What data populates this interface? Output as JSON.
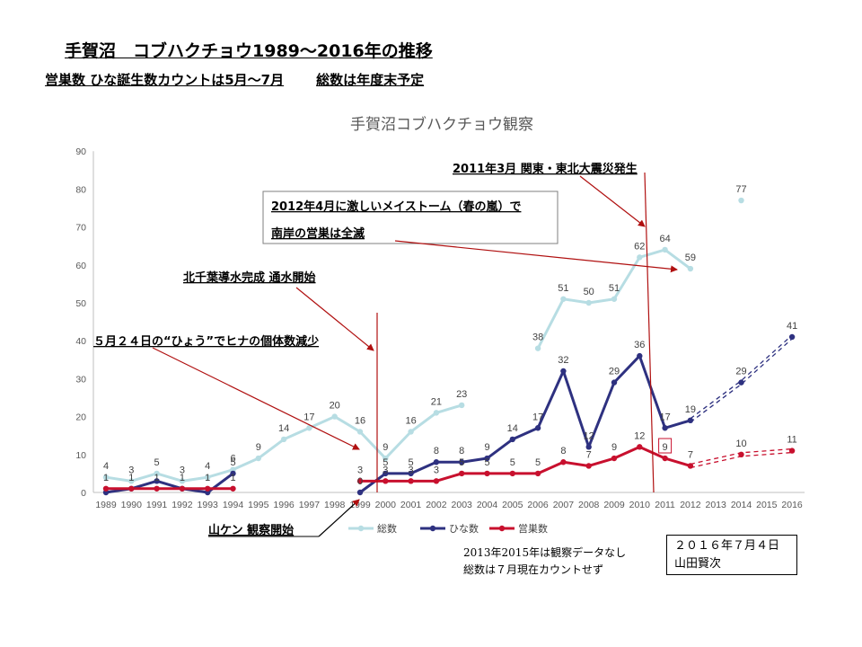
{
  "page": {
    "headline": "手賀沼　コブハクチョウ1989～2016年の推移",
    "subline_left": "営巣数 ひな誕生数カウントは5月～7月",
    "subline_right": "総数は年度末予定"
  },
  "notes": {
    "line1": "2013年2015年は観察データなし",
    "line2": "総数は７月現在カウントせず"
  },
  "signature": {
    "date": "２０１６年７月４日",
    "name": "山田賢次"
  },
  "annotations": {
    "quake": "2011年3月  関東・東北大震災発生",
    "storm_line1": "2012年4月に激しいメイストーム（春の嵐）で",
    "storm_line2": "南岸の営巣は全滅",
    "water": "北千葉導水完成 通水開始",
    "hyou": "５月２４日の“ひょう”でヒナの個体数減少",
    "observe": "山ケン  観察開始"
  },
  "colors": {
    "total": "#b7dde3",
    "chicks": "#2e3180",
    "nests": "#c8102e",
    "axis": "#bfbfbf",
    "arrow": "#b01010"
  },
  "chart_data": {
    "type": "line",
    "title": "手賀沼コブハクチョウ観察",
    "ylim": [
      0,
      90
    ],
    "yticks": [
      0,
      10,
      20,
      30,
      40,
      50,
      60,
      70,
      80,
      90
    ],
    "categories": [
      "1989",
      "1990",
      "1991",
      "1992",
      "1993",
      "1994",
      "1995",
      "1996",
      "1997",
      "1998",
      "1999",
      "2000",
      "2001",
      "2002",
      "2003",
      "2004",
      "2005",
      "2006",
      "2007",
      "2008",
      "2009",
      "2010",
      "2011",
      "2012",
      "2013",
      "2014",
      "2015",
      "2016"
    ],
    "series": [
      {
        "key": "total",
        "name": "総数",
        "segments": [
          [
            0,
            1,
            2,
            3,
            4,
            5,
            6,
            7,
            8,
            9,
            10,
            11,
            12,
            13,
            14
          ],
          [
            17,
            18,
            19,
            20,
            21,
            22,
            23
          ]
        ],
        "values": [
          4,
          3,
          5,
          3,
          4,
          6,
          9,
          14,
          17,
          20,
          16,
          9,
          16,
          21,
          23,
          null,
          null,
          38,
          51,
          50,
          51,
          62,
          64,
          59,
          null,
          77,
          null,
          null
        ],
        "labels": [
          "4",
          "3",
          "5",
          "3",
          "4",
          "6",
          "9",
          "14",
          "17",
          "20",
          "16",
          "9",
          "16",
          "21",
          "23",
          null,
          null,
          "38",
          "51",
          "50",
          "51",
          "62",
          "64",
          "59",
          null,
          "77",
          null,
          null
        ]
      },
      {
        "key": "chicks",
        "name": "ひな数",
        "segments": [
          [
            0,
            1,
            2,
            3,
            4,
            5
          ],
          [
            10,
            11,
            12,
            13,
            14,
            15,
            16,
            17,
            18,
            19,
            20,
            21,
            22,
            23
          ]
        ],
        "dashed": [
          [
            23,
            25,
            27
          ]
        ],
        "values": [
          0,
          1,
          3,
          1,
          0,
          5,
          null,
          null,
          null,
          null,
          0,
          5,
          5,
          8,
          8,
          9,
          14,
          17,
          32,
          12,
          29,
          36,
          17,
          19,
          null,
          29,
          null,
          41
        ],
        "labels": [
          null,
          null,
          null,
          null,
          null,
          "5",
          null,
          null,
          null,
          null,
          "0",
          "5",
          "5",
          "8",
          "8",
          "9",
          "14",
          "17",
          "32",
          "12",
          "29",
          "36",
          "17",
          "19",
          null,
          "29",
          null,
          "41"
        ]
      },
      {
        "key": "nests",
        "name": "営巣数",
        "segments": [
          [
            0,
            1,
            2,
            3,
            4,
            5
          ],
          [
            10,
            11,
            12,
            13,
            14,
            15,
            16,
            17,
            18,
            19,
            20,
            21,
            22,
            23
          ]
        ],
        "dashed": [
          [
            23,
            25,
            27
          ]
        ],
        "values": [
          1,
          1,
          1,
          1,
          1,
          1,
          null,
          null,
          null,
          null,
          3,
          3,
          3,
          3,
          5,
          5,
          5,
          5,
          8,
          7,
          9,
          12,
          9,
          7,
          null,
          10,
          null,
          11
        ],
        "labels": [
          "1",
          "1",
          "1",
          "1",
          "1",
          "1",
          null,
          null,
          null,
          null,
          "3",
          "3",
          "3",
          "3",
          "5",
          "5",
          "5",
          "5",
          "8",
          "7",
          "9",
          "12",
          "9",
          "7",
          null,
          "10",
          null,
          "11"
        ],
        "boxed_index": 22
      }
    ]
  }
}
